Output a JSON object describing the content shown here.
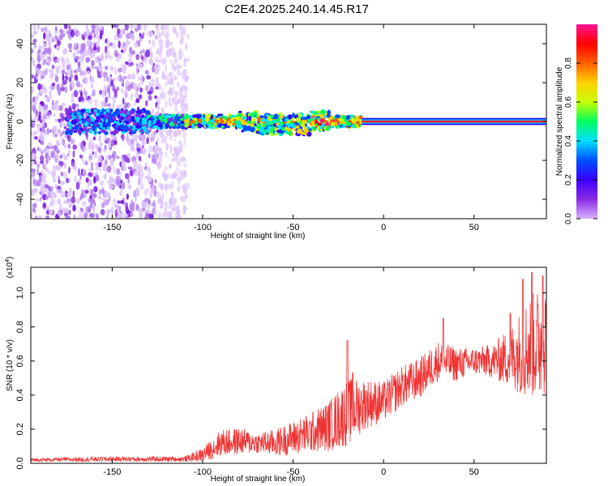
{
  "title": "C2E4.2025.240.14.45.R17",
  "chart_data": [
    {
      "type": "heatmap",
      "xlabel": "Height of straight line (km)",
      "ylabel": "Frequency (Hz)",
      "xlim": [
        -195,
        90
      ],
      "ylim": [
        -50,
        50
      ],
      "xticks": [
        -150,
        -100,
        -50,
        0,
        50
      ],
      "yticks": [
        -40,
        -20,
        0,
        20,
        40
      ],
      "colorbar": {
        "label": "Normalized spectral amplitude",
        "range": [
          0,
          1
        ],
        "ticks": [
          "0.0",
          "0.2",
          "0.4",
          "0.6",
          "0.8"
        ],
        "colors": [
          "#ffffff",
          "#d9b3ff",
          "#8a2be2",
          "#3a00ff",
          "#0050ff",
          "#00e0ff",
          "#00ff60",
          "#c8ff00",
          "#ffd000",
          "#ff6000",
          "#ff0000",
          "#ff1493"
        ]
      },
      "features": {
        "broadband_noise_x_range": [
          -195,
          -108
        ],
        "signal_band_center_hz": 0,
        "tone_start_km": -12
      },
      "grid": false
    },
    {
      "type": "line",
      "xlabel": "Height of straight line (km)",
      "ylabel": "SNR (10 * v/v)",
      "yscale_note": "(x10",
      "yscale_exp": "4",
      "xlim": [
        -195,
        90
      ],
      "ylim": [
        0,
        1.15
      ],
      "xticks": [
        -150,
        -100,
        -50,
        0,
        50
      ],
      "yticks": [
        0.0,
        0.2,
        0.4,
        0.6,
        0.8,
        1.0
      ],
      "color": "#ee3333",
      "envelope": {
        "x": [
          -195,
          -150,
          -110,
          -100,
          -90,
          -80,
          -70,
          -60,
          -50,
          -40,
          -30,
          -20,
          -10,
          0,
          10,
          20,
          30,
          40,
          50,
          60,
          70,
          80,
          90
        ],
        "base": [
          0.02,
          0.025,
          0.025,
          0.05,
          0.12,
          0.13,
          0.12,
          0.12,
          0.15,
          0.18,
          0.22,
          0.3,
          0.35,
          0.36,
          0.45,
          0.5,
          0.6,
          0.58,
          0.6,
          0.6,
          0.62,
          0.68,
          0.72
        ],
        "amp": [
          0.01,
          0.015,
          0.015,
          0.04,
          0.08,
          0.08,
          0.06,
          0.08,
          0.1,
          0.12,
          0.15,
          0.2,
          0.15,
          0.12,
          0.12,
          0.12,
          0.12,
          0.1,
          0.08,
          0.1,
          0.18,
          0.3,
          0.35
        ]
      },
      "spikes": [
        {
          "x": -20,
          "y": 0.72
        },
        {
          "x": -17,
          "y": 0.53
        },
        {
          "x": 33,
          "y": 0.85
        },
        {
          "x": 70,
          "y": 0.88
        },
        {
          "x": 77,
          "y": 1.08
        },
        {
          "x": 82,
          "y": 1.12
        },
        {
          "x": 88,
          "y": 1.1
        }
      ],
      "grid": false
    }
  ]
}
